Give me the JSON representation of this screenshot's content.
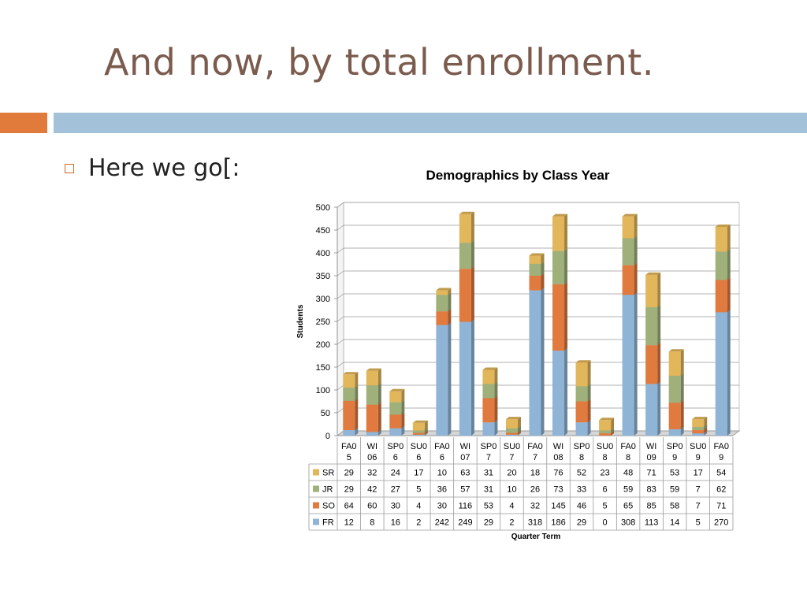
{
  "slide": {
    "title": "And now, by total enrollment.",
    "bullet": "Here we go[:"
  },
  "chart_data": {
    "type": "bar",
    "stacked": true,
    "title": "Demographics by Class Year",
    "xlabel": "Quarter Term",
    "ylabel": "Students",
    "ylim": [
      0,
      500
    ],
    "yticks": [
      0,
      50,
      100,
      150,
      200,
      250,
      300,
      350,
      400,
      450,
      500
    ],
    "grid": true,
    "legend": "in-table",
    "categories": [
      [
        "FA0",
        "5"
      ],
      [
        "WI",
        "06"
      ],
      [
        "SP0",
        "6"
      ],
      [
        "SU0",
        "6"
      ],
      [
        "FA0",
        "6"
      ],
      [
        "WI",
        "07"
      ],
      [
        "SP0",
        "7"
      ],
      [
        "SU0",
        "7"
      ],
      [
        "FA0",
        "7"
      ],
      [
        "WI",
        "08"
      ],
      [
        "SP0",
        "8"
      ],
      [
        "SU0",
        "8"
      ],
      [
        "FA0",
        "8"
      ],
      [
        "WI",
        "09"
      ],
      [
        "SP0",
        "9"
      ],
      [
        "SU0",
        "9"
      ],
      [
        "FA0",
        "9"
      ]
    ],
    "series": [
      {
        "name": "FR",
        "color": "#8fb4d6",
        "values": [
          12,
          8,
          16,
          2,
          242,
          249,
          29,
          2,
          318,
          186,
          29,
          0,
          308,
          113,
          14,
          5,
          270
        ]
      },
      {
        "name": "SO",
        "color": "#e07a3f",
        "values": [
          64,
          60,
          30,
          4,
          30,
          116,
          53,
          4,
          32,
          145,
          46,
          5,
          65,
          85,
          58,
          7,
          71
        ]
      },
      {
        "name": "JR",
        "color": "#9fb07a",
        "values": [
          29,
          42,
          27,
          5,
          36,
          57,
          31,
          10,
          26,
          73,
          33,
          6,
          59,
          83,
          59,
          7,
          62
        ]
      },
      {
        "name": "SR",
        "color": "#e2b65a",
        "values": [
          29,
          32,
          24,
          17,
          10,
          63,
          31,
          20,
          18,
          76,
          52,
          23,
          48,
          71,
          53,
          17,
          54
        ]
      }
    ]
  }
}
